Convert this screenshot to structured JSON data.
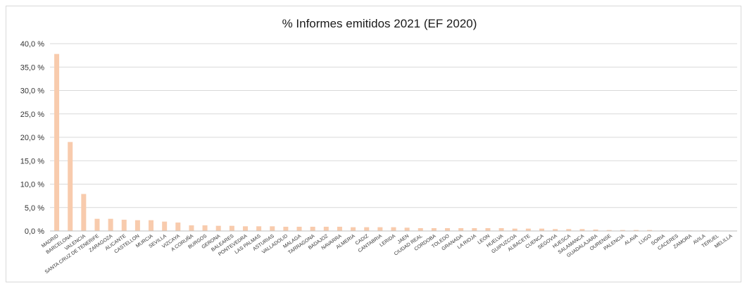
{
  "chart_data": {
    "type": "bar",
    "title": "% Informes emitidos 2021 (EF 2020)",
    "xlabel": "",
    "ylabel": "",
    "ylim": [
      0,
      40
    ],
    "y_ticks": [
      "0,0 %",
      "5,0 %",
      "10,0 %",
      "15,0 %",
      "20,0 %",
      "25,0 %",
      "30,0 %",
      "35,0 %",
      "40,0 %"
    ],
    "grid": true,
    "legend": "none",
    "bar_color": "#f8cbad",
    "categories": [
      "MADRID",
      "BARCELONA",
      "VALENCIA",
      "SANTA CRUZ DE TENERIFE",
      "ZARAGOZA",
      "ALICANTE",
      "CASTELLON",
      "MURCIA",
      "SEVILLA",
      "VIZCAYA",
      "A CORUÑA",
      "BURGOS",
      "GERONA",
      "BALEARES",
      "PONTEVEDRA",
      "LAS PALMAS",
      "ASTURIAS",
      "VALLADOLID",
      "MALAGA",
      "TARRAGONA",
      "BADAJOZ",
      "NAVARRA",
      "ALMERIA",
      "CADIZ",
      "CANTABRIA",
      "LERIDA",
      "JAEN",
      "CIUDAD REAL",
      "CORDOBA",
      "TOLEDO",
      "GRANADA",
      "LA RIOJA",
      "LEON",
      "HUELVA",
      "GUIPUZCOA",
      "ALBACETE",
      "CUENCA",
      "SEGOVIA",
      "HUESCA",
      "SALAMANCA",
      "GUADALAJARA",
      "OURENSE",
      "PALENCIA",
      "ALAVA",
      "LUGO",
      "SORIA",
      "CACERES",
      "ZAMORA",
      "AVILA",
      "TERUEL",
      "MELILLA"
    ],
    "values": [
      37.8,
      19.0,
      7.9,
      2.6,
      2.6,
      2.4,
      2.3,
      2.3,
      2.0,
      1.8,
      1.2,
      1.2,
      1.1,
      1.1,
      1.0,
      1.0,
      1.0,
      0.9,
      0.9,
      0.9,
      0.9,
      0.9,
      0.8,
      0.8,
      0.8,
      0.8,
      0.7,
      0.6,
      0.6,
      0.6,
      0.6,
      0.6,
      0.6,
      0.6,
      0.5,
      0.5,
      0.5,
      0.4,
      0.4,
      0.4,
      0.3,
      0.2,
      0.2,
      0.2,
      0.2,
      0.1,
      0.1,
      0.1,
      0.1,
      0.1,
      0.05
    ]
  }
}
